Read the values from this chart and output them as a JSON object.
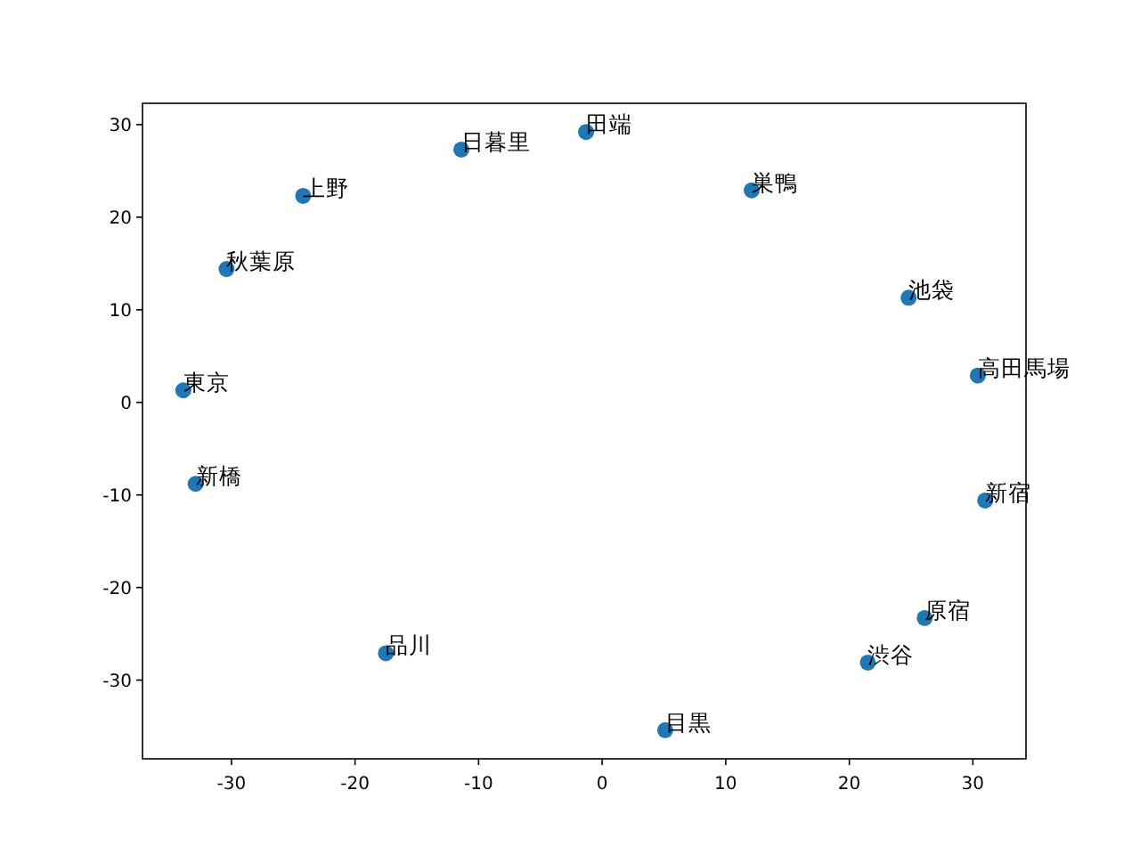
{
  "chart_data": {
    "type": "scatter",
    "color": "#1f77b4",
    "marker": "circle",
    "xlim": [
      -37.2,
      34.3
    ],
    "ylim": [
      -38.5,
      32.3
    ],
    "xticks": [
      -30,
      -20,
      -10,
      0,
      10,
      20,
      30
    ],
    "yticks": [
      -30,
      -20,
      -10,
      0,
      10,
      20,
      30
    ],
    "x": [
      -33.9,
      -32.9,
      -17.5,
      5.1,
      21.5,
      26.1,
      31.0,
      30.4,
      24.8,
      12.1,
      -1.3,
      -11.4,
      -24.2,
      -30.4
    ],
    "values": [
      1.3,
      -8.8,
      -27.1,
      -35.4,
      -28.1,
      -23.3,
      -10.6,
      2.9,
      11.3,
      22.9,
      29.2,
      27.3,
      22.3,
      14.4
    ],
    "annotations": [
      {
        "text": "東京",
        "x": -33.9,
        "y": 1.3
      },
      {
        "text": "新橋",
        "x": -32.9,
        "y": -8.8
      },
      {
        "text": "品川",
        "x": -17.5,
        "y": -27.1
      },
      {
        "text": "目黒",
        "x": 5.1,
        "y": -35.4
      },
      {
        "text": "渋谷",
        "x": 21.5,
        "y": -28.1
      },
      {
        "text": "原宿",
        "x": 26.1,
        "y": -23.3
      },
      {
        "text": "新宿",
        "x": 31.0,
        "y": -10.6
      },
      {
        "text": "高田馬場",
        "x": 30.4,
        "y": 2.9
      },
      {
        "text": "池袋",
        "x": 24.8,
        "y": 11.3
      },
      {
        "text": "巣鴨",
        "x": 12.1,
        "y": 22.9
      },
      {
        "text": "田端",
        "x": -1.3,
        "y": 29.2
      },
      {
        "text": "日暮里",
        "x": -11.4,
        "y": 27.3
      },
      {
        "text": "上野",
        "x": -24.2,
        "y": 22.3
      },
      {
        "text": "秋葉原",
        "x": -30.4,
        "y": 14.4
      }
    ]
  }
}
